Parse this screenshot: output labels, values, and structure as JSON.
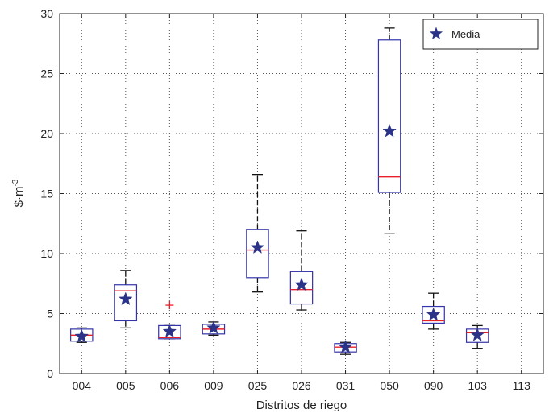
{
  "chart_data": {
    "type": "boxplot",
    "title": "",
    "xlabel": "Distritos de riego",
    "ylabel_main": "$·m",
    "ylabel_exp": "-3",
    "ylim": [
      0,
      30
    ],
    "yticks": [
      0,
      5,
      10,
      15,
      20,
      25,
      30
    ],
    "grid": true,
    "legend": {
      "label": "Media",
      "position": "top-right"
    },
    "colors": {
      "box": "#3333aa",
      "median": "#e8202a",
      "whisker": "#111111",
      "mean_marker": "#2a3388",
      "outlier": "#e8202a",
      "grid": "#555555"
    },
    "categories": [
      "004",
      "005",
      "006",
      "009",
      "025",
      "026",
      "031",
      "050",
      "090",
      "103",
      "113"
    ],
    "boxes": [
      {
        "category": "004",
        "min": 2.6,
        "q1": 2.7,
        "median": 3.2,
        "q3": 3.7,
        "max": 3.8,
        "mean": 3.1,
        "outliers": []
      },
      {
        "category": "005",
        "min": 3.8,
        "q1": 4.4,
        "median": 6.9,
        "q3": 7.4,
        "max": 8.6,
        "mean": 6.2,
        "outliers": []
      },
      {
        "category": "006",
        "min": 2.9,
        "q1": 2.9,
        "median": 3.0,
        "q3": 4.0,
        "max": 4.0,
        "mean": 3.5,
        "outliers": [
          5.7
        ]
      },
      {
        "category": "009",
        "min": 3.2,
        "q1": 3.3,
        "median": 3.7,
        "q3": 4.1,
        "max": 4.3,
        "mean": 3.8,
        "outliers": []
      },
      {
        "category": "025",
        "min": 6.8,
        "q1": 8.0,
        "median": 10.3,
        "q3": 12.0,
        "max": 16.6,
        "mean": 10.5,
        "outliers": []
      },
      {
        "category": "026",
        "min": 5.3,
        "q1": 5.8,
        "median": 7.0,
        "q3": 8.5,
        "max": 11.9,
        "mean": 7.4,
        "outliers": []
      },
      {
        "category": "031",
        "min": 1.6,
        "q1": 1.8,
        "median": 2.2,
        "q3": 2.5,
        "max": 2.6,
        "mean": 2.2,
        "outliers": []
      },
      {
        "category": "050",
        "min": 11.7,
        "q1": 15.1,
        "median": 16.4,
        "q3": 27.8,
        "max": 28.8,
        "mean": 20.2,
        "outliers": []
      },
      {
        "category": "090",
        "min": 3.7,
        "q1": 4.2,
        "median": 4.4,
        "q3": 5.6,
        "max": 6.7,
        "mean": 4.9,
        "outliers": []
      },
      {
        "category": "103",
        "min": 2.1,
        "q1": 2.6,
        "median": 3.4,
        "q3": 3.7,
        "max": 4.0,
        "mean": 3.2,
        "outliers": []
      },
      {
        "category": "113",
        "min": null,
        "q1": null,
        "median": null,
        "q3": null,
        "max": null,
        "mean": null,
        "outliers": []
      }
    ]
  }
}
